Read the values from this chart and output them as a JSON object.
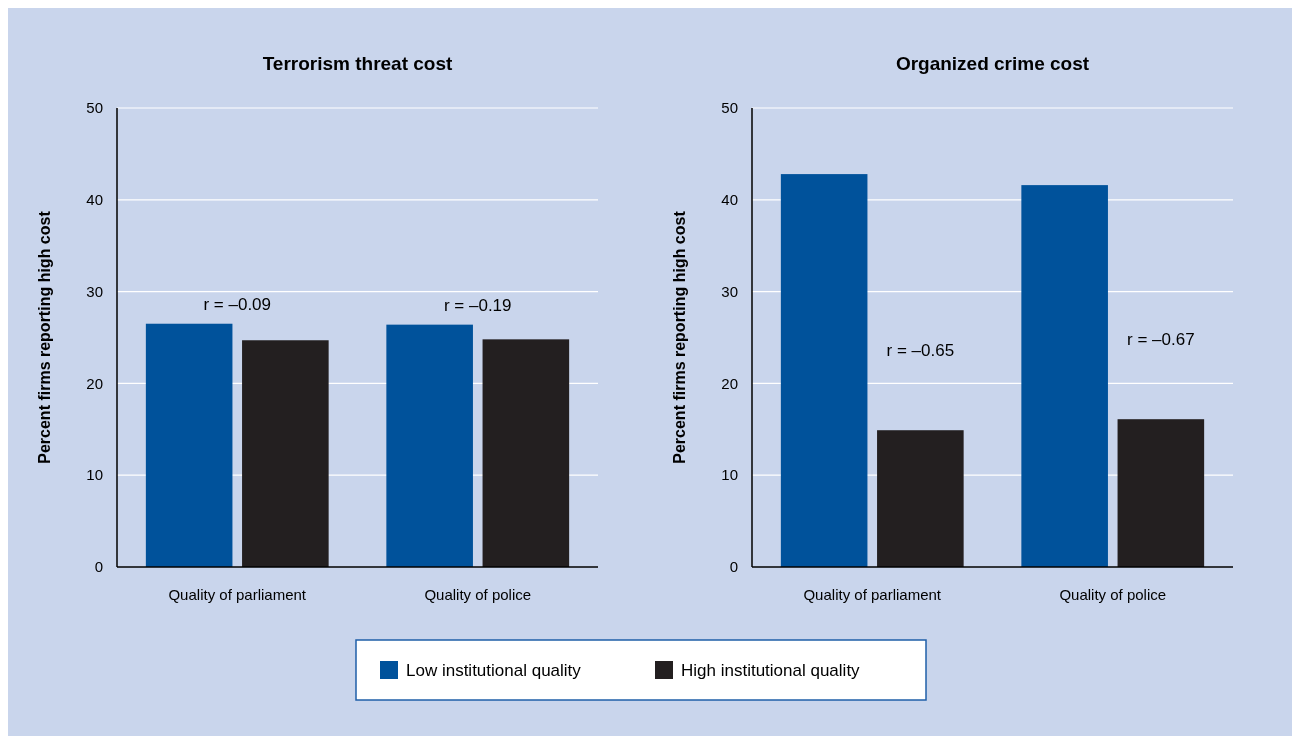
{
  "chart_data": [
    {
      "type": "bar",
      "title": "Terrorism threat cost",
      "ylabel": "Percent firms reporting high cost",
      "categories": [
        "Quality of parliament",
        "Quality of police"
      ],
      "series": [
        {
          "name": "Low institutional quality",
          "color": "#00529b",
          "values": [
            26.5,
            26.4
          ]
        },
        {
          "name": "High institutional quality",
          "color": "#231f20",
          "values": [
            24.7,
            24.8
          ]
        }
      ],
      "ylim": [
        0,
        50
      ],
      "yticks": [
        0,
        10,
        20,
        30,
        40,
        50
      ],
      "grid": "y",
      "legend": "bottom",
      "annotations": [
        "r = –0.09",
        "r = –0.19"
      ]
    },
    {
      "type": "bar",
      "title": "Organized crime cost",
      "ylabel": "Percent firms reporting high cost",
      "categories": [
        "Quality of parliament",
        "Quality of police"
      ],
      "series": [
        {
          "color": "#00529b",
          "values": [
            42.8,
            41.6
          ]
        },
        {
          "color": "#231f20",
          "values": [
            14.9,
            16.1
          ]
        }
      ],
      "ylim": [
        0,
        50
      ],
      "yticks": [
        0,
        10,
        20,
        30,
        40,
        50
      ],
      "grid": "y",
      "annotations": [
        "r = –0.65",
        "r = –0.67"
      ]
    }
  ]
}
